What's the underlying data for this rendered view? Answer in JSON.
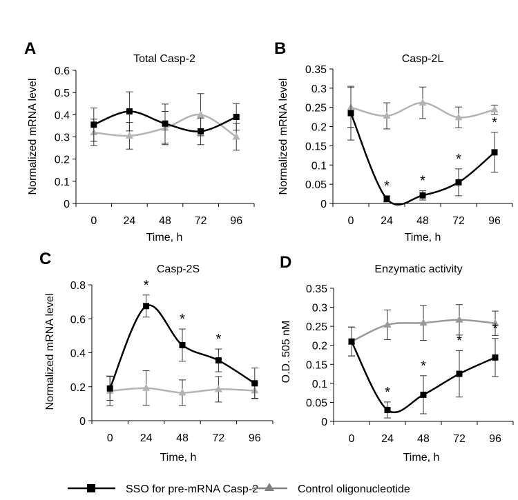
{
  "figure": {
    "legend": [
      {
        "label": "SSO for pre-mRNA Casp-2",
        "color": "#000000",
        "marker": "square"
      },
      {
        "label": "Control oligonucleotide",
        "color": "#808080",
        "marker": "triangle"
      }
    ]
  },
  "chart_data": [
    {
      "panel": "A",
      "type": "line",
      "title": "Total Casp-2",
      "xlabel": "Time, h",
      "ylabel": "Normalized mRNA level",
      "categories": [
        "0",
        "24",
        "48",
        "72",
        "96"
      ],
      "ylim": [
        0,
        0.6
      ],
      "yticks": [
        "0",
        "0.1",
        "0.2",
        "0.3",
        "0.4",
        "0.5",
        "0.6"
      ],
      "yticks_values": [
        0,
        0.1,
        0.2,
        0.3,
        0.4,
        0.5,
        0.6
      ],
      "series": [
        {
          "name": "SSO for pre-mRNA Casp-2",
          "color": "#000000",
          "marker": "square",
          "values": [
            0.355,
            0.415,
            0.36,
            0.325,
            0.39
          ],
          "err": [
            0.075,
            0.088,
            0.088,
            0.06,
            0.06
          ]
        },
        {
          "name": "Control oligonucleotide",
          "color": "#b3b3b3",
          "marker": "triangle",
          "values": [
            0.32,
            0.305,
            0.34,
            0.4,
            0.3
          ],
          "err": [
            0.06,
            0.06,
            0.075,
            0.095,
            0.06
          ]
        }
      ],
      "significance": []
    },
    {
      "panel": "B",
      "type": "line",
      "title": "Casp-2L",
      "xlabel": "Time, h",
      "ylabel": "Normalized mRNA level",
      "categories": [
        "0",
        "24",
        "48",
        "72",
        "96"
      ],
      "ylim": [
        0,
        0.35
      ],
      "yticks": [
        "0",
        "0.05",
        "0.1",
        "0.15",
        "0.2",
        "0.25",
        "0.3",
        "0.35"
      ],
      "yticks_values": [
        0,
        0.05,
        0.1,
        0.15,
        0.2,
        0.25,
        0.3,
        0.35
      ],
      "series": [
        {
          "name": "SSO for pre-mRNA Casp-2",
          "color": "#000000",
          "marker": "square",
          "values": [
            0.235,
            0.012,
            0.021,
            0.055,
            0.133
          ],
          "err": [
            0.07,
            0.008,
            0.012,
            0.035,
            0.052
          ]
        },
        {
          "name": "Control oligonucleotide",
          "color": "#b3b3b3",
          "marker": "triangle",
          "values": [
            0.25,
            0.228,
            0.262,
            0.224,
            0.244
          ],
          "err": [
            0.052,
            0.034,
            0.041,
            0.027,
            0.012
          ]
        }
      ],
      "significance": [
        {
          "category": "24",
          "label": "*"
        },
        {
          "category": "48",
          "label": "*"
        },
        {
          "category": "72",
          "label": "*"
        },
        {
          "category": "96",
          "label": "*"
        }
      ]
    },
    {
      "panel": "C",
      "type": "line",
      "title": "Casp-2S",
      "xlabel": "Time, h",
      "ylabel": "Normalized mRNA level",
      "categories": [
        "0",
        "24",
        "48",
        "72",
        "96"
      ],
      "ylim": [
        0,
        0.8
      ],
      "yticks": [
        "0",
        "0.2",
        "0.4",
        "0.6",
        "0.8"
      ],
      "yticks_values": [
        0,
        0.2,
        0.4,
        0.6,
        0.8
      ],
      "series": [
        {
          "name": "SSO for pre-mRNA Casp-2",
          "color": "#000000",
          "marker": "square",
          "values": [
            0.19,
            0.675,
            0.445,
            0.355,
            0.22
          ],
          "err": [
            0.07,
            0.065,
            0.095,
            0.067,
            0.09
          ]
        },
        {
          "name": "Control oligonucleotide",
          "color": "#b3b3b3",
          "marker": "triangle",
          "values": [
            0.175,
            0.192,
            0.165,
            0.185,
            0.177
          ],
          "err": [
            0.088,
            0.102,
            0.075,
            0.075,
            0.045
          ]
        }
      ],
      "significance": [
        {
          "category": "24",
          "label": "*"
        },
        {
          "category": "48",
          "label": "*"
        },
        {
          "category": "72",
          "label": "*"
        }
      ]
    },
    {
      "panel": "D",
      "type": "line",
      "title": "Enzymatic activity",
      "xlabel": "Time, h",
      "ylabel": "O.D. 505 nM",
      "categories": [
        "0",
        "24",
        "48",
        "72",
        "96"
      ],
      "ylim": [
        0,
        0.35
      ],
      "yticks": [
        "0",
        "0.05",
        "0.1",
        "0.15",
        "0.2",
        "0.25",
        "0.3",
        "0.35"
      ],
      "yticks_values": [
        0,
        0.05,
        0.1,
        0.15,
        0.2,
        0.25,
        0.3,
        0.35
      ],
      "series": [
        {
          "name": "SSO for pre-mRNA Casp-2",
          "color": "#000000",
          "marker": "square",
          "values": [
            0.21,
            0.03,
            0.07,
            0.125,
            0.168
          ],
          "err": [
            0.038,
            0.021,
            0.05,
            0.061,
            0.05
          ]
        },
        {
          "name": "Control oligonucleotide",
          "color": "#999999",
          "marker": "triangle",
          "values": [
            0.21,
            0.254,
            0.259,
            0.267,
            0.258
          ],
          "err": [
            0.038,
            0.039,
            0.046,
            0.04,
            0.032
          ]
        }
      ],
      "significance": [
        {
          "category": "24",
          "label": "*"
        },
        {
          "category": "48",
          "label": "*"
        },
        {
          "category": "72",
          "label": "*"
        },
        {
          "category": "96",
          "label": "*"
        }
      ]
    }
  ]
}
